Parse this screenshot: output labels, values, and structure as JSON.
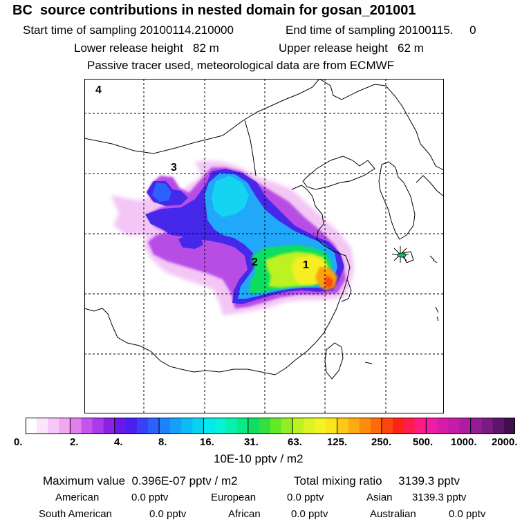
{
  "header": {
    "title": "BC  source contributions in nested domain for gosan_201001",
    "start_time": "Start time of sampling 20100114.210000",
    "end_time": "End time of sampling 20100115.     0",
    "lower_release": "Lower release height   82 m",
    "upper_release": "Upper release height   62 m",
    "tracer_note": "Passive tracer used, meteorological data are from ECMWF"
  },
  "map": {
    "region_labels": [
      "1",
      "2",
      "3",
      "4"
    ],
    "receptor_marker": "gosan-star-icon"
  },
  "colorbar": {
    "ticks": [
      "0.",
      "2.",
      "4.",
      "8.",
      "16.",
      "31.",
      "63.",
      "125.",
      "250.",
      "500.",
      "1000.",
      "2000."
    ],
    "colors": [
      "#ffffff",
      "#fce4fc",
      "#f7c8f7",
      "#f0a8f2",
      "#e27fef",
      "#c455ec",
      "#a93ae8",
      "#8c20e4",
      "#6a18e8",
      "#4b1ff0",
      "#3a40f8",
      "#2c62fb",
      "#1f82fb",
      "#14a0f8",
      "#0cbaf5",
      "#08d2f2",
      "#05e8ee",
      "#05f2d8",
      "#08f0b0",
      "#0ae888",
      "#10de60",
      "#34e040",
      "#64e82a",
      "#92ee22",
      "#bcf222",
      "#dcf424",
      "#f4f424",
      "#fae41c",
      "#fcca14",
      "#fcac10",
      "#fc8c0c",
      "#fc6a0c",
      "#fc4610",
      "#fc2414",
      "#fc1c4e",
      "#fc1c84",
      "#f01ca6",
      "#d81caa",
      "#c41ca8",
      "#ae1ca0",
      "#941c94",
      "#7a1a82",
      "#5c146c",
      "#40104c"
    ],
    "unit": "10E-10 pptv / m2"
  },
  "stats": {
    "max_value": "Maximum value  0.396E-07 pptv / m2",
    "total_mixing": "Total mixing ratio     3139.3 pptv",
    "american_label": "American",
    "american_value": "0.0 pptv",
    "european_label": "European",
    "european_value": "0.0 pptv",
    "asian_label": "Asian",
    "asian_value": "3139.3 pptv",
    "south_american_label": "South American",
    "south_american_value": "0.0 pptv",
    "african_label": "African",
    "african_value": "0.0 pptv",
    "australian_label": "Australian",
    "australian_value": "0.0 pptv"
  }
}
